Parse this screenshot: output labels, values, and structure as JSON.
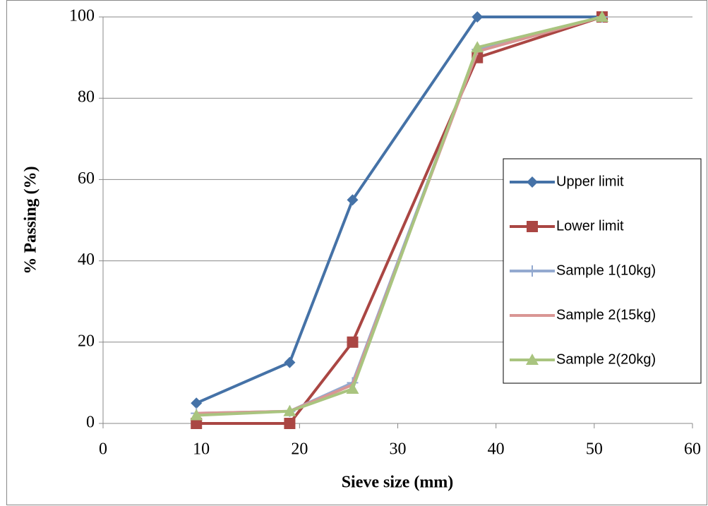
{
  "chart_data": {
    "type": "line",
    "x_label": "Sieve size (mm)",
    "y_label": "% Passing (%)",
    "x": [
      9.5,
      19,
      25.4,
      38.1,
      50.8
    ],
    "series": [
      {
        "name": "Upper limit",
        "color": "#4572a7",
        "marker": "diamond",
        "values": [
          5,
          15,
          55,
          100,
          100
        ]
      },
      {
        "name": "Lower limit",
        "color": "#aa4643",
        "marker": "square",
        "values": [
          0,
          0,
          20,
          90,
          100
        ]
      },
      {
        "name": "Sample 1(10kg)",
        "color": "#93a9cf",
        "marker": "plus",
        "values": [
          2.5,
          3,
          10,
          92,
          100
        ]
      },
      {
        "name": "Sample 2(15kg)",
        "color": "#d99694",
        "marker": "none",
        "values": [
          2.5,
          3,
          9.5,
          91.5,
          100
        ]
      },
      {
        "name": "Sample 2(20kg)",
        "color": "#a9c47f",
        "marker": "triangle",
        "values": [
          2,
          3,
          8.5,
          92.5,
          100
        ]
      }
    ],
    "xlim": [
      0,
      60
    ],
    "xticks": [
      0,
      10,
      20,
      30,
      40,
      50,
      60
    ],
    "ylim": [
      0,
      100
    ],
    "yticks": [
      0,
      20,
      40,
      60,
      80,
      100
    ],
    "grid": true,
    "legend": "right"
  }
}
